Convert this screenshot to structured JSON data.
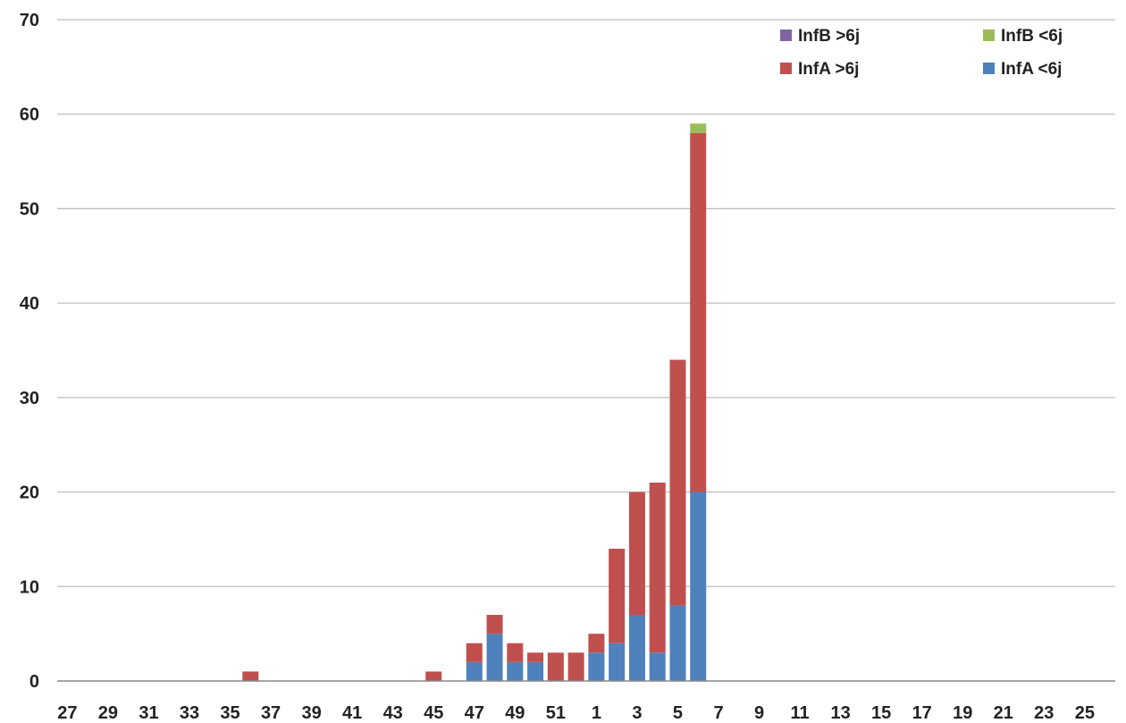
{
  "chart_data": {
    "type": "bar",
    "stacked": true,
    "title": "",
    "xlabel": "",
    "ylabel": "",
    "ylim": [
      0,
      70
    ],
    "yticks": [
      0,
      10,
      20,
      30,
      40,
      50,
      60,
      70
    ],
    "grid": "horizontal",
    "legend_position": "top-right",
    "categories": [
      "27",
      "28",
      "29",
      "30",
      "31",
      "32",
      "33",
      "34",
      "35",
      "36",
      "37",
      "38",
      "39",
      "40",
      "41",
      "42",
      "43",
      "44",
      "45",
      "46",
      "47",
      "48",
      "49",
      "50",
      "51",
      "52",
      "1",
      "2",
      "3",
      "4",
      "5",
      "6",
      "7",
      "8",
      "9",
      "10",
      "11",
      "12",
      "13",
      "14",
      "15",
      "16",
      "17",
      "18",
      "19",
      "20",
      "21",
      "22",
      "23",
      "24",
      "25",
      "26"
    ],
    "visible_tick_labels": [
      "27",
      "29",
      "31",
      "33",
      "35",
      "37",
      "39",
      "41",
      "43",
      "45",
      "47",
      "49",
      "51",
      "1",
      "3",
      "5",
      "7",
      "9",
      "11",
      "13",
      "15",
      "17",
      "19",
      "21",
      "23",
      "25"
    ],
    "series": [
      {
        "name": "InfA <6j",
        "color": "#4f81bd",
        "values": [
          0,
          0,
          0,
          0,
          0,
          0,
          0,
          0,
          0,
          0,
          0,
          0,
          0,
          0,
          0,
          0,
          0,
          0,
          0,
          0,
          2,
          5,
          2,
          2,
          0,
          0,
          3,
          4,
          7,
          3,
          8,
          20,
          0,
          0,
          0,
          0,
          0,
          0,
          0,
          0,
          0,
          0,
          0,
          0,
          0,
          0,
          0,
          0,
          0,
          0,
          0,
          0
        ]
      },
      {
        "name": "InfA >6j",
        "color": "#c0504d",
        "values": [
          0,
          0,
          0,
          0,
          0,
          0,
          0,
          0,
          0,
          1,
          0,
          0,
          0,
          0,
          0,
          0,
          0,
          0,
          1,
          0,
          2,
          2,
          2,
          1,
          3,
          3,
          2,
          10,
          13,
          18,
          26,
          38,
          0,
          0,
          0,
          0,
          0,
          0,
          0,
          0,
          0,
          0,
          0,
          0,
          0,
          0,
          0,
          0,
          0,
          0,
          0,
          0
        ]
      },
      {
        "name": "InfB <6j",
        "color": "#9bbb59",
        "values": [
          0,
          0,
          0,
          0,
          0,
          0,
          0,
          0,
          0,
          0,
          0,
          0,
          0,
          0,
          0,
          0,
          0,
          0,
          0,
          0,
          0,
          0,
          0,
          0,
          0,
          0,
          0,
          0,
          0,
          0,
          0,
          1,
          0,
          0,
          0,
          0,
          0,
          0,
          0,
          0,
          0,
          0,
          0,
          0,
          0,
          0,
          0,
          0,
          0,
          0,
          0,
          0
        ]
      },
      {
        "name": "InfB >6j",
        "color": "#8064a2",
        "values": [
          0,
          0,
          0,
          0,
          0,
          0,
          0,
          0,
          0,
          0,
          0,
          0,
          0,
          0,
          0,
          0,
          0,
          0,
          0,
          0,
          0,
          0,
          0,
          0,
          0,
          0,
          0,
          0,
          0,
          0,
          0,
          0,
          0,
          0,
          0,
          0,
          0,
          0,
          0,
          0,
          0,
          0,
          0,
          0,
          0,
          0,
          0,
          0,
          0,
          0,
          0,
          0
        ]
      }
    ],
    "legend_order": [
      "InfB >6j",
      "InfB <6j",
      "InfA >6j",
      "InfA <6j"
    ]
  },
  "colors": {
    "grid": "#bfbfbf",
    "axis": "#888888",
    "text": "#222222"
  }
}
